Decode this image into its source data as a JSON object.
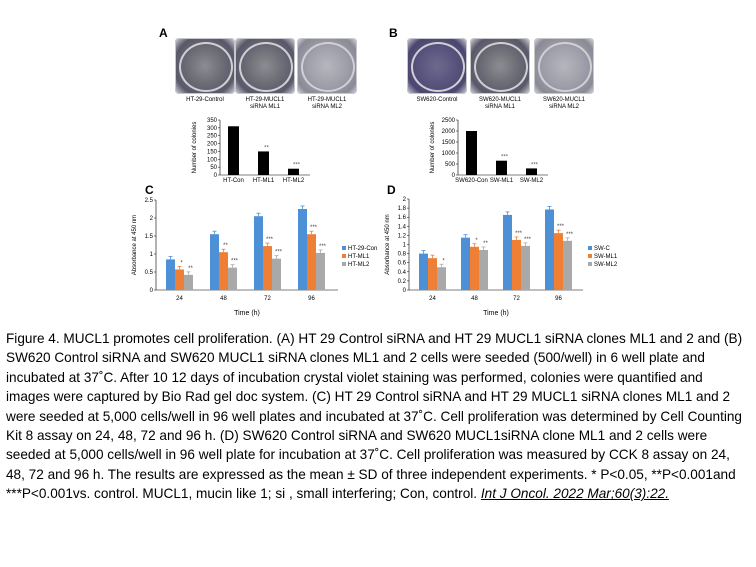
{
  "panels": {
    "A": {
      "letter": "A",
      "dishes": [
        {
          "label_l1": "HT-29-Control",
          "label_l2": ""
        },
        {
          "label_l1": "HT-29-MUCL1",
          "label_l2": "siRNA ML1"
        },
        {
          "label_l1": "HT-29-MUCL1",
          "label_l2": "siRNA ML2"
        }
      ]
    },
    "B": {
      "letter": "B",
      "dishes": [
        {
          "label_l1": "SW620-Control",
          "label_l2": ""
        },
        {
          "label_l1": "SW620-MUCL1",
          "label_l2": "siRNA ML1"
        },
        {
          "label_l1": "SW620-MUCL1",
          "label_l2": "siRNA ML2"
        }
      ]
    },
    "C": {
      "letter": "C"
    },
    "D": {
      "letter": "D"
    }
  },
  "chart_data": [
    {
      "id": "A",
      "type": "bar",
      "categories": [
        "HT-Con",
        "HT-ML1",
        "HT-ML2"
      ],
      "values": [
        310,
        150,
        40
      ],
      "sig": [
        "",
        "**",
        "***"
      ],
      "ylabel": "Number of colonies",
      "ylim": [
        0,
        350
      ],
      "yticks": [
        "0",
        "50",
        "100",
        "150",
        "200",
        "250",
        "300",
        "350"
      ],
      "color": "#000000"
    },
    {
      "id": "B",
      "type": "bar",
      "categories": [
        "SW620-Con",
        "SW-ML1",
        "SW-ML2"
      ],
      "values": [
        2000,
        650,
        300
      ],
      "sig": [
        "",
        "***",
        "***"
      ],
      "ylabel": "Number of colonies",
      "ylim": [
        0,
        2500
      ],
      "yticks": [
        "0",
        "500",
        "1000",
        "1500",
        "2000",
        "2500"
      ],
      "color": "#000000"
    },
    {
      "id": "C",
      "type": "bar",
      "categories": [
        "24",
        "48",
        "72",
        "96"
      ],
      "xlabel": "Time (h)",
      "ylabel": "Absorbance at 450 nm",
      "ylim": [
        0,
        2.5
      ],
      "yticks": [
        "0",
        "0.5",
        "1",
        "1.5",
        "2",
        "2.5"
      ],
      "series": [
        {
          "name": "HT-29-Con",
          "color": "#4d90d6",
          "values": [
            0.85,
            1.55,
            2.05,
            2.25
          ],
          "sig": [
            "",
            "",
            "",
            ""
          ]
        },
        {
          "name": "HT-ML1",
          "color": "#ef7f34",
          "values": [
            0.57,
            1.05,
            1.22,
            1.55
          ],
          "sig": [
            "*",
            "**",
            "***",
            "***"
          ]
        },
        {
          "name": "HT-ML2",
          "color": "#a9a9a9",
          "values": [
            0.42,
            0.62,
            0.87,
            1.03
          ],
          "sig": [
            "**",
            "***",
            "***",
            "***"
          ]
        }
      ]
    },
    {
      "id": "D",
      "type": "bar",
      "categories": [
        "24",
        "48",
        "72",
        "96"
      ],
      "xlabel": "Time (h)",
      "ylabel": "Absorbance at 450 nm",
      "ylim": [
        0,
        2
      ],
      "yticks": [
        "0",
        "0.2",
        "0.4",
        "0.6",
        "0.8",
        "1",
        "1.2",
        "1.4",
        "1.6",
        "1.8",
        "2"
      ],
      "series": [
        {
          "name": "SW-C",
          "color": "#4d90d6",
          "values": [
            0.8,
            1.15,
            1.65,
            1.77
          ],
          "sig": [
            "",
            "",
            "",
            ""
          ]
        },
        {
          "name": "SW-ML1",
          "color": "#ef7f34",
          "values": [
            0.7,
            0.95,
            1.1,
            1.25
          ],
          "sig": [
            "",
            "*",
            "***",
            "***"
          ]
        },
        {
          "name": "SW-ML2",
          "color": "#a9a9a9",
          "values": [
            0.5,
            0.88,
            0.97,
            1.08
          ],
          "sig": [
            "*",
            "**",
            "***",
            "***"
          ]
        }
      ]
    }
  ],
  "caption": {
    "text": "Figure 4. MUCL1 promotes cell proliferation. (A) HT 29 Control siRNA and HT 29 MUCL1 siRNA clones ML1 and 2 and (B) SW620 Control siRNA and SW620 MUCL1 siRNA clones ML1 and 2 cells were seeded (500/well) in 6 well plate and incubated at 37˚C. After 10 12 days of incubation crystal violet staining was performed, colonies were quantified and images were captured by Bio Rad gel doc system. (C) HT 29 Control siRNA and HT 29 MUCL1 siRNA clones ML1 and 2 were seeded at 5,000 cells/well in 96 well plates and incubated at 37˚C. Cell proliferation was determined by Cell Counting Kit 8 assay on 24, 48, 72 and 96 h. (D) SW620 Control siRNA and SW620 MUCL1siRNA clone ML1 and 2 cells were seeded at 5,000 cells/well in 96 well plate for incubation at 37˚C. Cell proliferation was measured by CCK 8 assay on 24, 48, 72 and 96 h. The results are expressed as the mean ± SD of three independent experiments. * P<0.05, **P<0.001and ***P<0.001vs. control. MUCL1, mucin like 1; si , small interfering; Con, control.",
    "citation": "Int J Oncol. 2022 Mar;60(3):22."
  }
}
